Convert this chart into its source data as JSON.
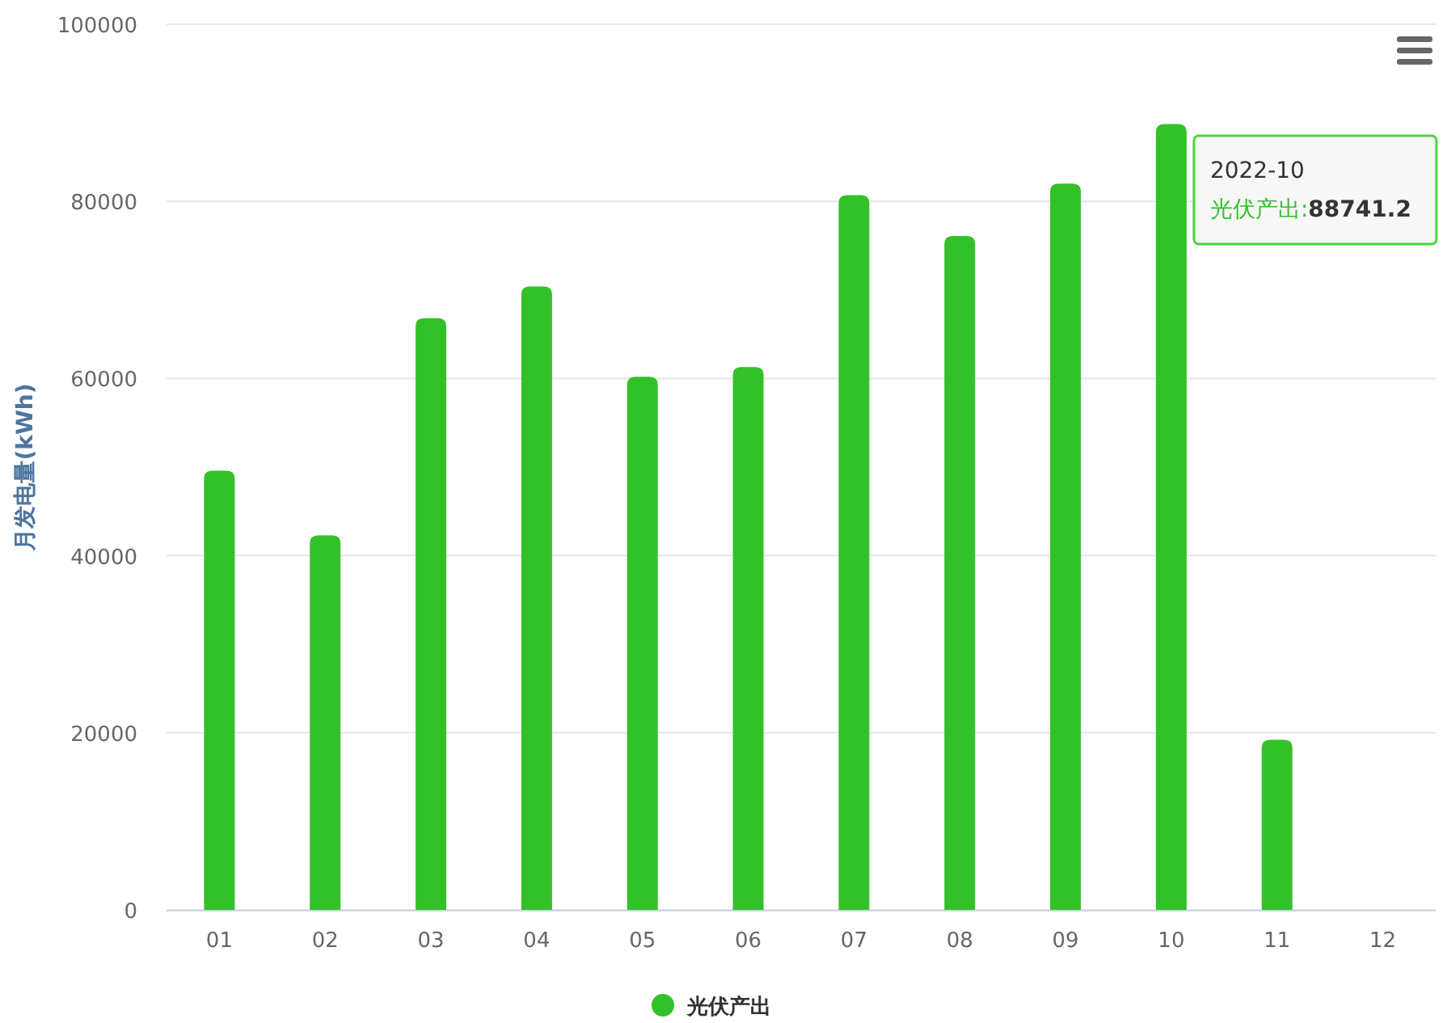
{
  "chart_data": {
    "type": "bar",
    "ylabel": "月发电量(kWh)",
    "categories": [
      "01",
      "02",
      "03",
      "04",
      "05",
      "06",
      "07",
      "08",
      "09",
      "10",
      "11",
      "12"
    ],
    "series": [
      {
        "name": "光伏产出",
        "color": "#33c12a",
        "values": [
          49600,
          42300,
          66800,
          70400,
          60200,
          61300,
          80700,
          76100,
          82000,
          88741.2,
          19200,
          null
        ]
      }
    ],
    "ylim": [
      0,
      100000
    ],
    "yticks": [
      0,
      20000,
      40000,
      60000,
      80000,
      100000
    ],
    "grid": "y",
    "legend": "bottom",
    "annotations": [
      "2022-10",
      "光伏产出:**88741.2**"
    ]
  }
}
